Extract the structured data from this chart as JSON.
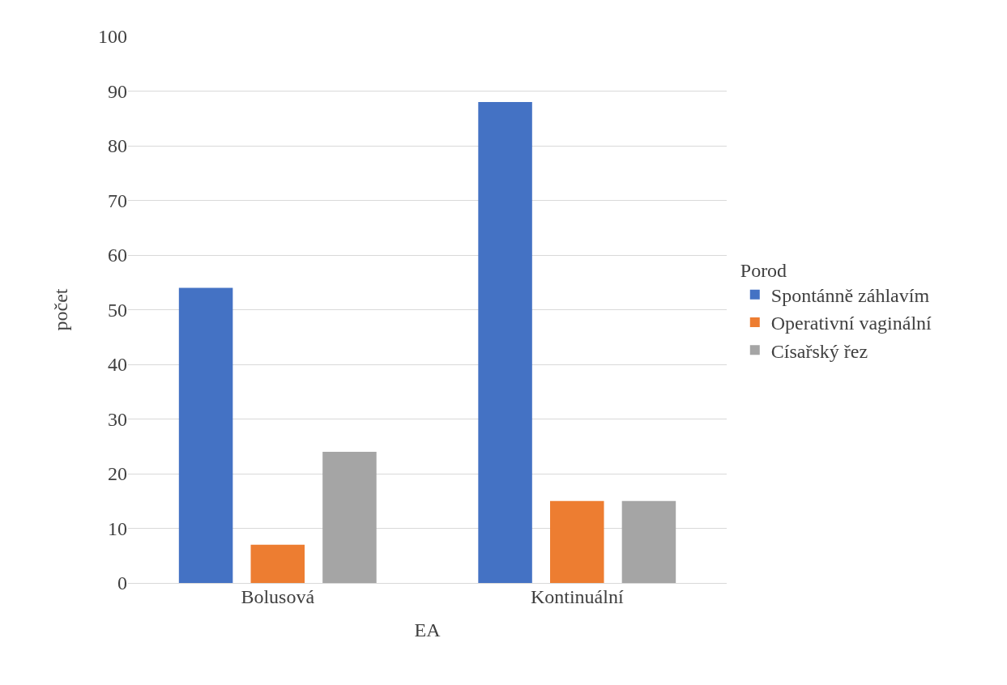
{
  "chart_data": {
    "type": "bar",
    "xlabel": "EA",
    "ylabel": "počet",
    "legend_title": "Porod",
    "categories": [
      "Bolusová",
      "Kontinuální"
    ],
    "series": [
      {
        "name": "Spontánně záhlavím",
        "color": "#4472c4",
        "values": [
          54,
          88
        ]
      },
      {
        "name": "Operativní vaginální",
        "color": "#ed7d31",
        "values": [
          7,
          15
        ]
      },
      {
        "name": "Císařský řez",
        "color": "#a5a5a5",
        "values": [
          24,
          15
        ]
      }
    ],
    "ylim": [
      0,
      100
    ],
    "yticks": [
      0,
      10,
      20,
      30,
      40,
      50,
      60,
      70,
      80,
      90,
      100
    ],
    "grid": "y",
    "legend": "right"
  }
}
